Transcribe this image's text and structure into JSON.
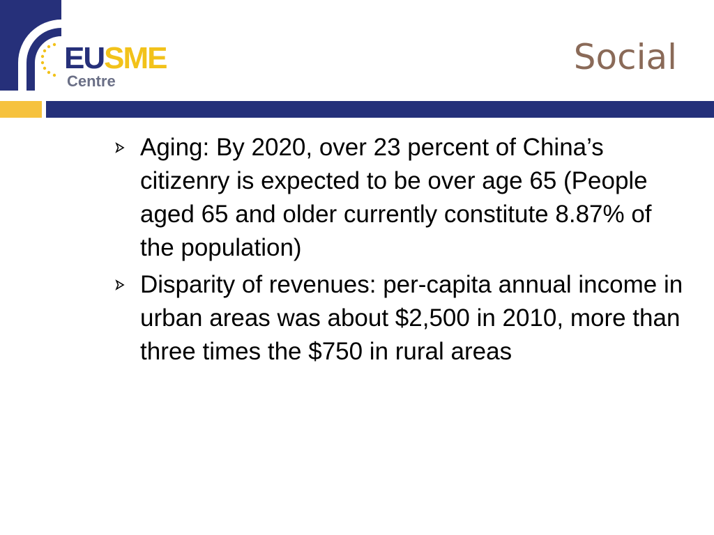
{
  "logo": {
    "word_eu": "EU",
    "word_sme": "SME",
    "sub": "Centre"
  },
  "title": "Social",
  "colors": {
    "navy": "#24307a",
    "yellow": "#f6c23e",
    "title": "#8a6a58"
  },
  "bullet_icon": "arrowhead-icon",
  "bullets": [
    {
      "text": "Aging: By 2020, over 23 percent of China’s citizenry is expected to be over age 65 (People aged 65 and older currently constitute 8.87% of the population)"
    },
    {
      "text": "Disparity of revenues: per-capita annual income in urban areas was about $2,500 in 2010, more than three times the $750 in rural areas"
    }
  ]
}
